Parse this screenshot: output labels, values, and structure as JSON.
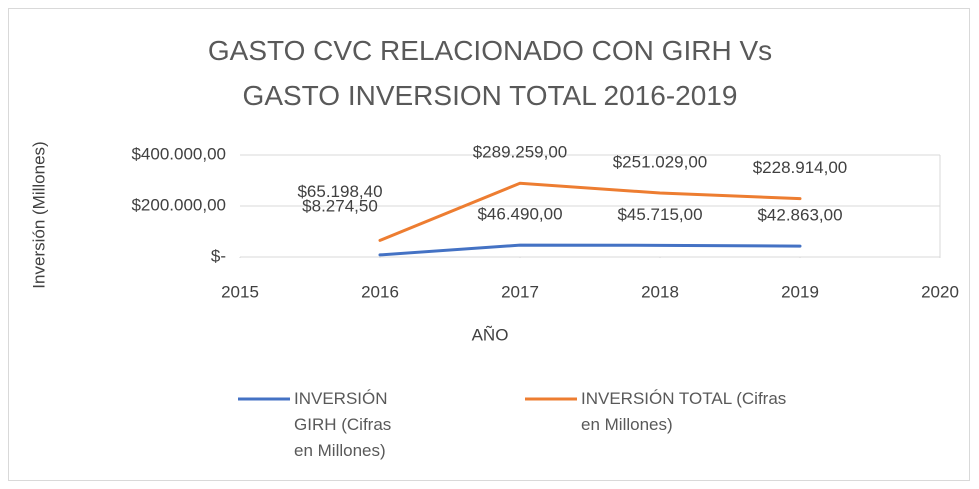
{
  "chart_data": {
    "type": "line",
    "title": "GASTO CVC RELACIONADO CON GIRH Vs GASTO INVERSION TOTAL 2016-2019",
    "x_label": "AÑO",
    "y_label": "Inversión (Millones)",
    "x": [
      2016,
      2017,
      2018,
      2019
    ],
    "series": [
      {
        "name": "INVERSIÓN GIRH (Cifras en Millones)",
        "color": "#4472c4",
        "values": [
          8274.5,
          46490,
          45715,
          42863
        ],
        "value_labels": [
          "$8.274,50",
          "$46.490,00",
          "$45.715,00",
          "$42.863,00"
        ]
      },
      {
        "name": "INVERSIÓN TOTAL (Cifras en Millones)",
        "color": "#ed7d31",
        "values": [
          65198.4,
          289259,
          251029,
          228914
        ],
        "value_labels": [
          "$65.198,40",
          "$289.259,00",
          "$251.029,00",
          "$228.914,00"
        ]
      }
    ],
    "xlim": [
      2015,
      2020
    ],
    "xticks": [
      2015,
      2016,
      2017,
      2018,
      2019,
      2020
    ],
    "ylim": [
      0,
      400000
    ],
    "yticks": [
      {
        "value": 0,
        "label": "$-"
      },
      {
        "value": 200000,
        "label": "$200.000,00"
      },
      {
        "value": 400000,
        "label": "$400.000,00"
      }
    ],
    "grid": true,
    "legend": "bottom"
  }
}
